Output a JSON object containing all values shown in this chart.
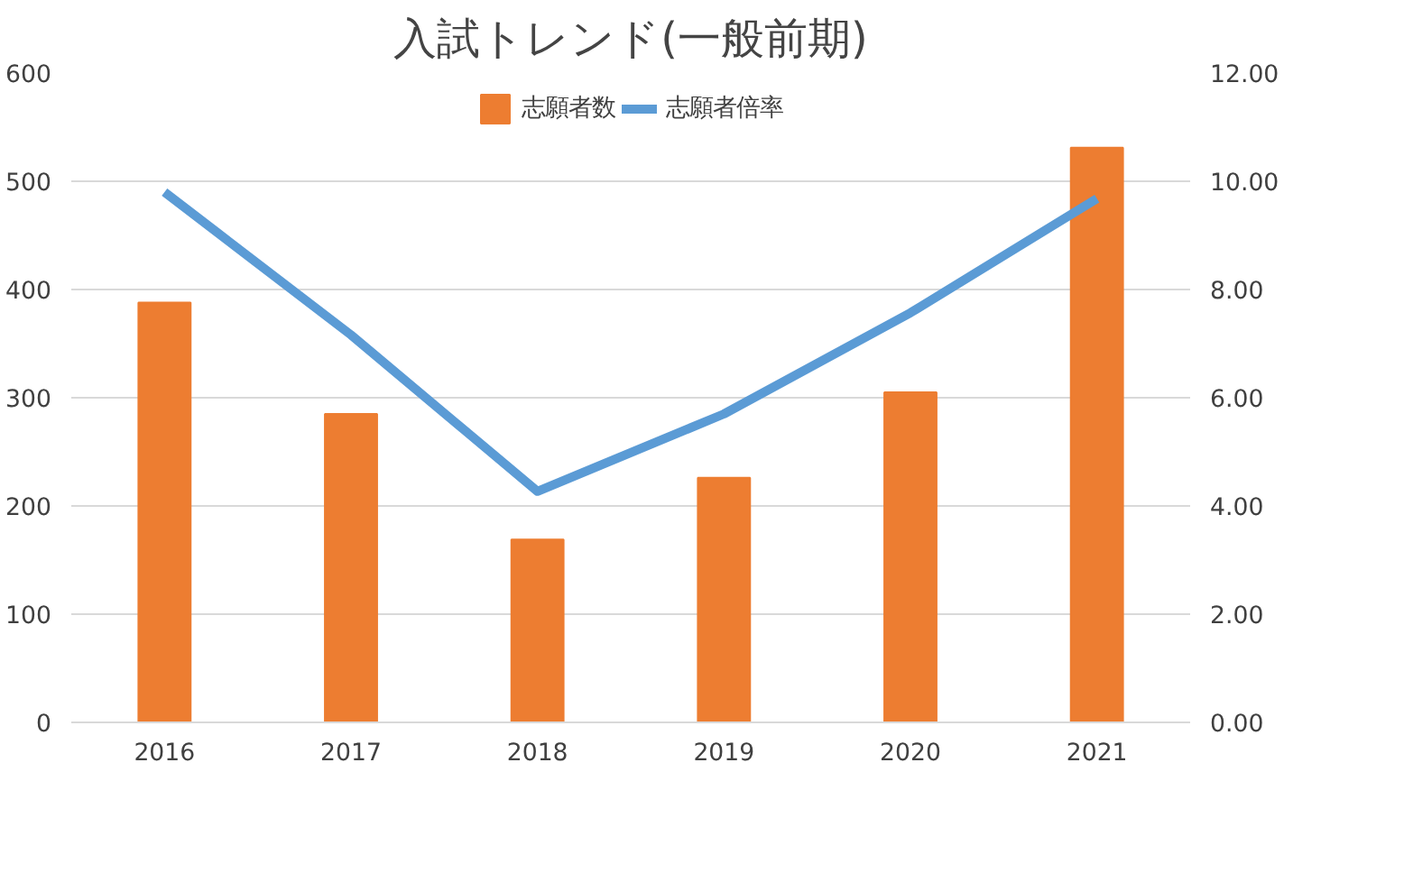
{
  "chart_data": {
    "type": "bar",
    "title": "入試トレンド(一般前期)",
    "categories": [
      "2016",
      "2017",
      "2018",
      "2019",
      "2020",
      "2021"
    ],
    "series": [
      {
        "name": "志願者数",
        "color": "#ed7d31",
        "values": [
          388,
          285,
          169,
          226,
          305,
          531
        ]
      },
      {
        "name": "志願者倍率",
        "type": "line",
        "axis": "y2",
        "color": "#5b9bd5",
        "values": [
          9.8,
          7.16,
          4.27,
          5.7,
          7.57,
          9.68
        ]
      }
    ],
    "ylim": [
      0,
      600
    ],
    "yticks": [
      0,
      100,
      200,
      300,
      400,
      500,
      600
    ],
    "y2lim": [
      0,
      12
    ],
    "y2ticks": [
      {
        "value": 0,
        "label": "0.00"
      },
      {
        "value": 2,
        "label": "2.00"
      },
      {
        "value": 4,
        "label": "4.00"
      },
      {
        "value": 6,
        "label": "6.00"
      },
      {
        "value": 8,
        "label": "8.00"
      },
      {
        "value": 10,
        "label": "10.00"
      },
      {
        "value": 12,
        "label": "12.00"
      }
    ],
    "grid": "y",
    "legend": "top",
    "line_style": "solid"
  }
}
